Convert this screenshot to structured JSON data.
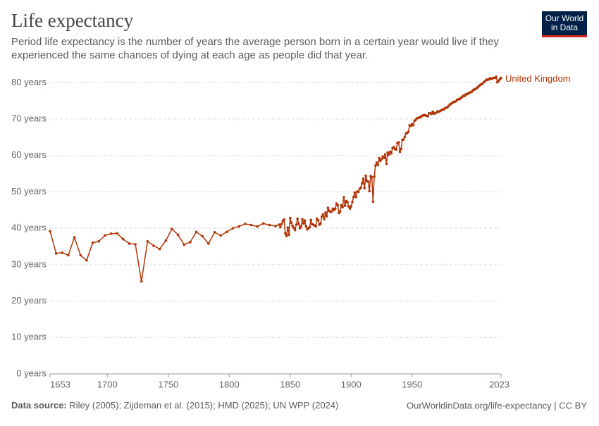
{
  "chart_data": {
    "type": "line",
    "title": "Life expectancy",
    "subtitle": "Period life expectancy is the number of years the average person born in a certain year would live if they experienced the same chances of dying at each age as people did that year.",
    "logo": [
      "Our World",
      "in Data"
    ],
    "source_label": "Data source:",
    "source": "Riley (2005); Zijdeman et al. (2015); HMD (2025); UN WPP (2024)",
    "footer_right": "OurWorldinData.org/life-expectancy | CC BY",
    "xlim": [
      1653,
      2023
    ],
    "ylim": [
      0,
      82
    ],
    "xticks": [
      1653,
      1700,
      1750,
      1800,
      1850,
      1900,
      1950,
      2023
    ],
    "yticks": [
      {
        "value": 0,
        "label": "0 years"
      },
      {
        "value": 10,
        "label": "10 years"
      },
      {
        "value": 20,
        "label": "20 years"
      },
      {
        "value": 30,
        "label": "30 years"
      },
      {
        "value": 40,
        "label": "40 years"
      },
      {
        "value": 50,
        "label": "50 years"
      },
      {
        "value": 60,
        "label": "60 years"
      },
      {
        "value": 70,
        "label": "70 years"
      },
      {
        "value": 80,
        "label": "80 years"
      }
    ],
    "grid": true,
    "x": [
      1653,
      1658,
      1663,
      1668,
      1673,
      1678,
      1683,
      1688,
      1693,
      1698,
      1703,
      1708,
      1713,
      1718,
      1723,
      1728,
      1733,
      1738,
      1743,
      1748,
      1753,
      1758,
      1763,
      1768,
      1773,
      1778,
      1783,
      1788,
      1793,
      1798,
      1803,
      1808,
      1813,
      1818,
      1823,
      1828,
      1833,
      1838,
      1841,
      1842,
      1843,
      1844,
      1845,
      1846,
      1847,
      1848,
      1849,
      1850,
      1851,
      1852,
      1853,
      1854,
      1855,
      1856,
      1857,
      1858,
      1859,
      1860,
      1861,
      1862,
      1863,
      1864,
      1865,
      1866,
      1867,
      1868,
      1869,
      1870,
      1871,
      1872,
      1873,
      1874,
      1875,
      1876,
      1877,
      1878,
      1879,
      1880,
      1881,
      1882,
      1883,
      1884,
      1885,
      1886,
      1887,
      1888,
      1889,
      1890,
      1891,
      1892,
      1893,
      1894,
      1895,
      1896,
      1897,
      1898,
      1899,
      1900,
      1901,
      1902,
      1903,
      1904,
      1905,
      1906,
      1907,
      1908,
      1909,
      1910,
      1911,
      1912,
      1913,
      1914,
      1915,
      1916,
      1917,
      1918,
      1919,
      1920,
      1921,
      1922,
      1923,
      1924,
      1925,
      1926,
      1927,
      1928,
      1929,
      1930,
      1931,
      1932,
      1933,
      1934,
      1935,
      1936,
      1937,
      1938,
      1939,
      1940,
      1941,
      1942,
      1943,
      1944,
      1945,
      1946,
      1947,
      1948,
      1949,
      1950,
      1951,
      1952,
      1953,
      1954,
      1955,
      1956,
      1957,
      1958,
      1959,
      1960,
      1961,
      1962,
      1963,
      1964,
      1965,
      1966,
      1967,
      1968,
      1969,
      1970,
      1971,
      1972,
      1973,
      1974,
      1975,
      1976,
      1977,
      1978,
      1979,
      1980,
      1981,
      1982,
      1983,
      1984,
      1985,
      1986,
      1987,
      1988,
      1989,
      1990,
      1991,
      1992,
      1993,
      1994,
      1995,
      1996,
      1997,
      1998,
      1999,
      2000,
      2001,
      2002,
      2003,
      2004,
      2005,
      2006,
      2007,
      2008,
      2009,
      2010,
      2011,
      2012,
      2013,
      2014,
      2015,
      2016,
      2017,
      2018,
      2019,
      2020,
      2021,
      2022,
      2023
    ],
    "series": [
      {
        "name": "United Kingdom",
        "color": "#b13507",
        "values": [
          39.2,
          33.1,
          33.3,
          32.6,
          37.5,
          32.6,
          31.2,
          36.0,
          36.4,
          38.0,
          38.5,
          38.6,
          37.0,
          35.8,
          35.6,
          25.4,
          36.4,
          35.2,
          34.3,
          36.6,
          39.8,
          38.2,
          35.5,
          36.2,
          39.0,
          37.8,
          35.8,
          38.9,
          38.0,
          39.0,
          40.0,
          40.5,
          41.2,
          40.9,
          40.5,
          41.3,
          40.9,
          40.6,
          41.0,
          40.3,
          41.2,
          42.0,
          42.4,
          38.6,
          37.9,
          40.2,
          38.2,
          42.8,
          41.5,
          40.6,
          40.1,
          39.5,
          41.0,
          42.6,
          41.2,
          40.0,
          40.5,
          42.5,
          41.3,
          42.1,
          40.5,
          39.7,
          40.0,
          40.3,
          42.3,
          41.1,
          41.0,
          40.8,
          40.5,
          42.6,
          42.2,
          41.0,
          41.3,
          43.2,
          43.8,
          42.5,
          44.3,
          43.3,
          45.6,
          44.8,
          44.5,
          44.6,
          45.4,
          45.0,
          45.4,
          46.8,
          46.3,
          44.2,
          44.6,
          46.3,
          45.8,
          48.5,
          46.2,
          47.5,
          47.2,
          46.0,
          45.4,
          46.0,
          47.2,
          48.6,
          49.8,
          48.6,
          50.1,
          50.0,
          50.8,
          51.2,
          52.3,
          53.6,
          51.0,
          54.4,
          53.0,
          52.8,
          50.2,
          54.3,
          54.0,
          47.3,
          54.2,
          57.2,
          58.0,
          57.4,
          59.3,
          58.5,
          59.0,
          59.7,
          59.3,
          60.3,
          57.7,
          60.8,
          60.2,
          61.0,
          60.6,
          62.0,
          62.3,
          61.8,
          61.6,
          63.4,
          63.6,
          61.0,
          61.8,
          64.3,
          64.4,
          65.1,
          66.0,
          66.2,
          66.5,
          68.3,
          68.1,
          68.6,
          68.3,
          69.5,
          69.8,
          70.2,
          70.3,
          70.4,
          70.6,
          70.8,
          71.0,
          71.1,
          71.0,
          70.9,
          70.8,
          71.6,
          71.6,
          71.4,
          72.0,
          71.5,
          71.6,
          71.8,
          72.1,
          72.0,
          72.2,
          72.4,
          72.6,
          72.6,
          73.0,
          73.1,
          73.2,
          73.6,
          74.0,
          74.2,
          74.4,
          74.7,
          74.7,
          74.9,
          75.3,
          75.4,
          75.5,
          75.8,
          76.0,
          76.4,
          76.3,
          76.8,
          76.8,
          77.0,
          77.2,
          77.4,
          77.5,
          77.9,
          78.1,
          78.3,
          78.4,
          78.8,
          79.1,
          79.4,
          79.6,
          79.7,
          80.2,
          80.4,
          80.8,
          80.8,
          80.9,
          81.2,
          81.0,
          81.2,
          81.3,
          81.3,
          81.6,
          80.1,
          80.5,
          80.9,
          81.3
        ]
      }
    ]
  }
}
